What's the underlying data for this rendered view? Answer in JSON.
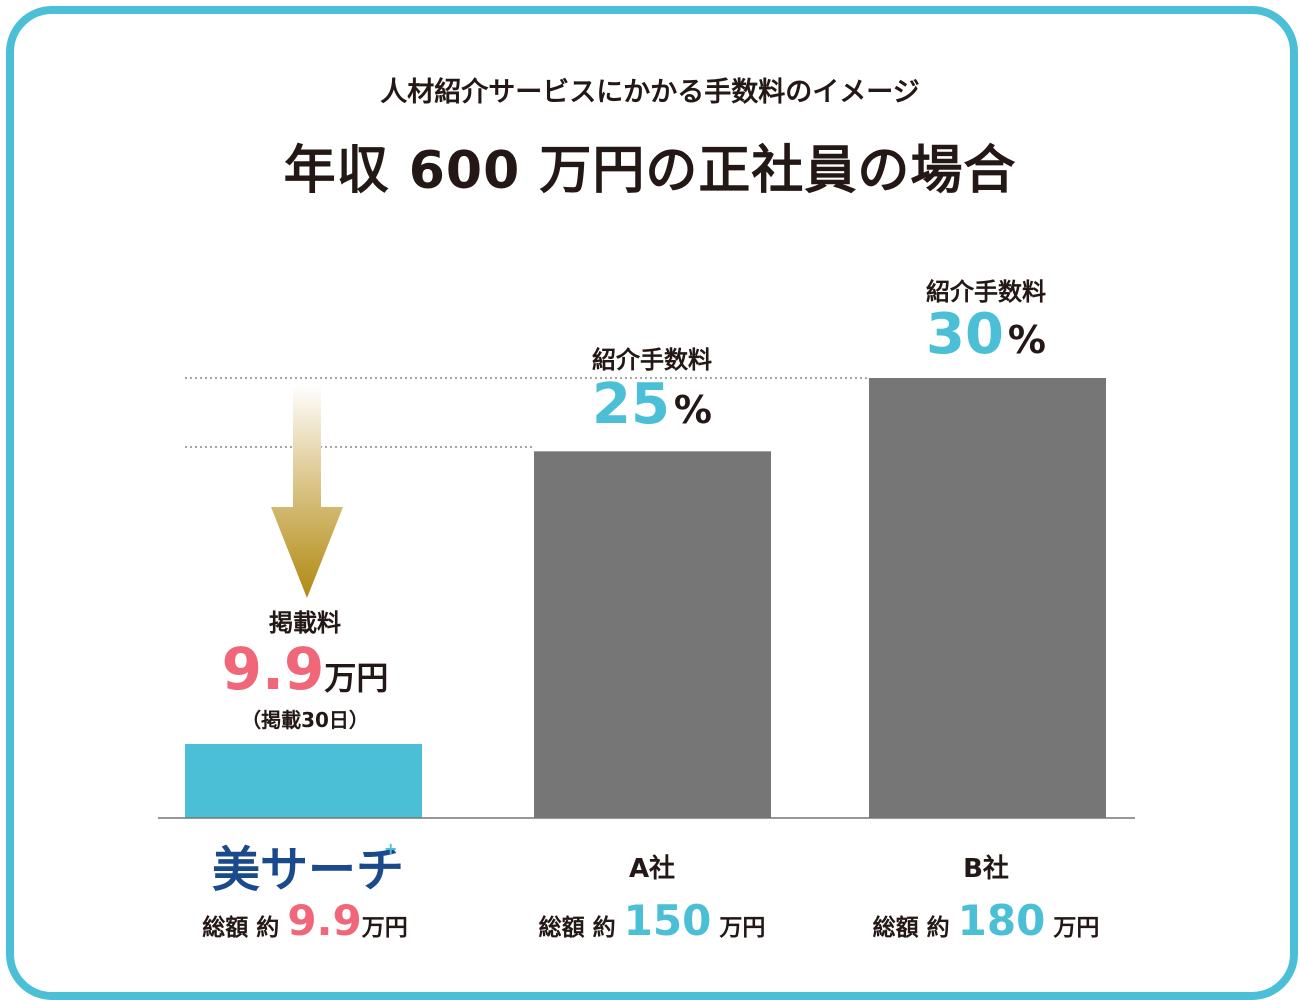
{
  "subtitle": "人材紹介サービスにかかる手数料のイメージ",
  "title": "年収 600 万円の正社員の場合",
  "colors": {
    "accent": "#4bbfd6",
    "pink": "#f0677a",
    "bar_gray": "#767676",
    "arrow_gold": "#b08a10"
  },
  "chart_data": {
    "type": "bar",
    "title": "年収 600 万円の正社員の場合",
    "unit": "万円",
    "categories": [
      "美サーチ",
      "A社",
      "B社"
    ],
    "values": [
      9.9,
      150,
      180
    ],
    "ylim": [
      0,
      180
    ],
    "bars": [
      {
        "company": "美サーチ",
        "logo_text": "美サーチ",
        "fee_label": "掲載料",
        "fee_value": "9.9",
        "fee_unit": "万円",
        "fee_note": "（掲載30日）",
        "total_prefix": "総額 約",
        "total_value": "9.9",
        "total_unit": "万円",
        "color": "#4bbfd6"
      },
      {
        "company": "A社",
        "fee_label": "紹介手数料",
        "fee_value": "25",
        "fee_unit": "%",
        "total_prefix": "総額 約",
        "total_value": "150",
        "total_unit": "万円",
        "color": "#767676"
      },
      {
        "company": "B社",
        "fee_label": "紹介手数料",
        "fee_value": "30",
        "fee_unit": "%",
        "total_prefix": "総額 約",
        "total_value": "180",
        "total_unit": "万円",
        "color": "#767676"
      }
    ]
  }
}
